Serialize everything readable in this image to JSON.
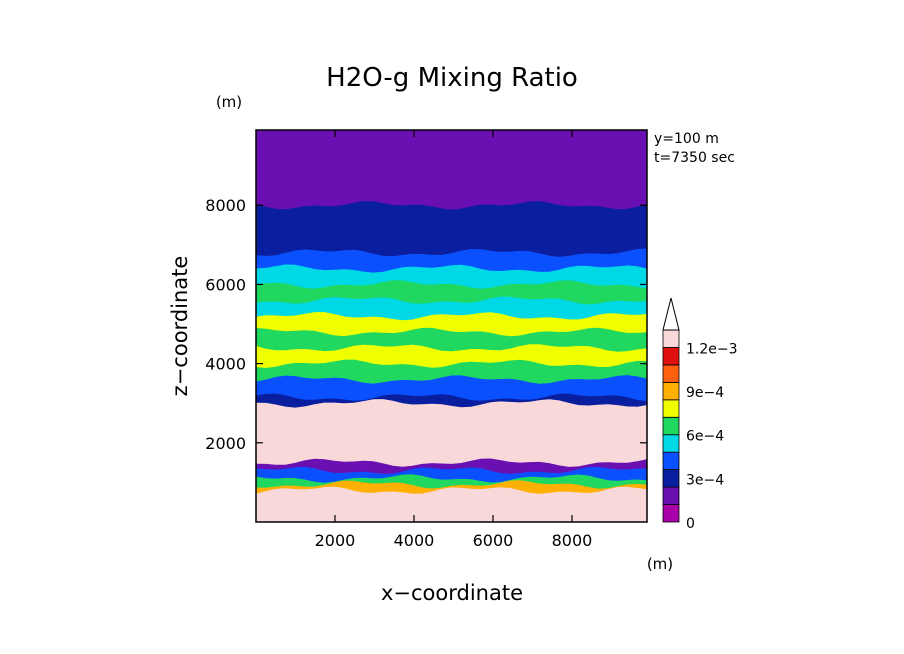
{
  "chart_data": {
    "type": "heatmap",
    "title": "H2O-g Mixing Ratio",
    "xlabel": "x−coordinate",
    "ylabel": "z−coordinate",
    "x_unit": "(m)",
    "y_unit": "(m)",
    "xlim": [
      0,
      9900
    ],
    "ylim": [
      0,
      9900
    ],
    "x_ticks": [
      2000,
      4000,
      6000,
      8000
    ],
    "y_ticks": [
      2000,
      4000,
      6000,
      8000
    ],
    "x_tick_labels": [
      "2000",
      "4000",
      "6000",
      "8000"
    ],
    "y_tick_labels": [
      "2000",
      "4000",
      "6000",
      "8000"
    ],
    "info_lines": [
      "y=100 m",
      "t=7350 sec"
    ],
    "colorbar": {
      "levels": [
        0,
        0.00015,
        0.0003,
        0.00045,
        0.0006,
        0.00075,
        0.0009,
        0.00105,
        0.0012
      ],
      "tick_values": [
        0,
        0.0003,
        0.0006,
        0.0009,
        0.0012
      ],
      "tick_labels": [
        "0",
        "3e−4",
        "6e−4",
        "9e−4",
        "1.2e−3"
      ],
      "colors": [
        "#a800a8",
        "#6a0fb2",
        "#0a1fa0",
        "#0a50ff",
        "#00d8e6",
        "#20d860",
        "#f0ff00",
        "#ffb000",
        "#ff6010",
        "#e01010",
        "#f8d8d8"
      ],
      "extend_top_color": "#ffffff"
    },
    "layers": [
      {
        "z": 9900,
        "value": 3e-05
      },
      {
        "z": 8700,
        "value": 8e-05
      },
      {
        "z": 8000,
        "value": 0.00022
      },
      {
        "z": 6800,
        "value": 0.00035
      },
      {
        "z": 6400,
        "value": 0.0005
      },
      {
        "z": 6000,
        "value": 0.00065
      },
      {
        "z": 5600,
        "value": 0.00055
      },
      {
        "z": 5200,
        "value": 0.00085
      },
      {
        "z": 4800,
        "value": 0.0007
      },
      {
        "z": 4400,
        "value": 0.0008
      },
      {
        "z": 4000,
        "value": 0.0006
      },
      {
        "z": 3600,
        "value": 0.0004
      },
      {
        "z": 3150,
        "value": 0.0002
      },
      {
        "z": 3000,
        "value": 0.0014
      },
      {
        "z": 1500,
        "value": 8e-05
      },
      {
        "z": 1300,
        "value": 0.0003
      },
      {
        "z": 1100,
        "value": 0.0006
      },
      {
        "z": 950,
        "value": 0.0009
      },
      {
        "z": 800,
        "value": 0.0012
      }
    ]
  }
}
